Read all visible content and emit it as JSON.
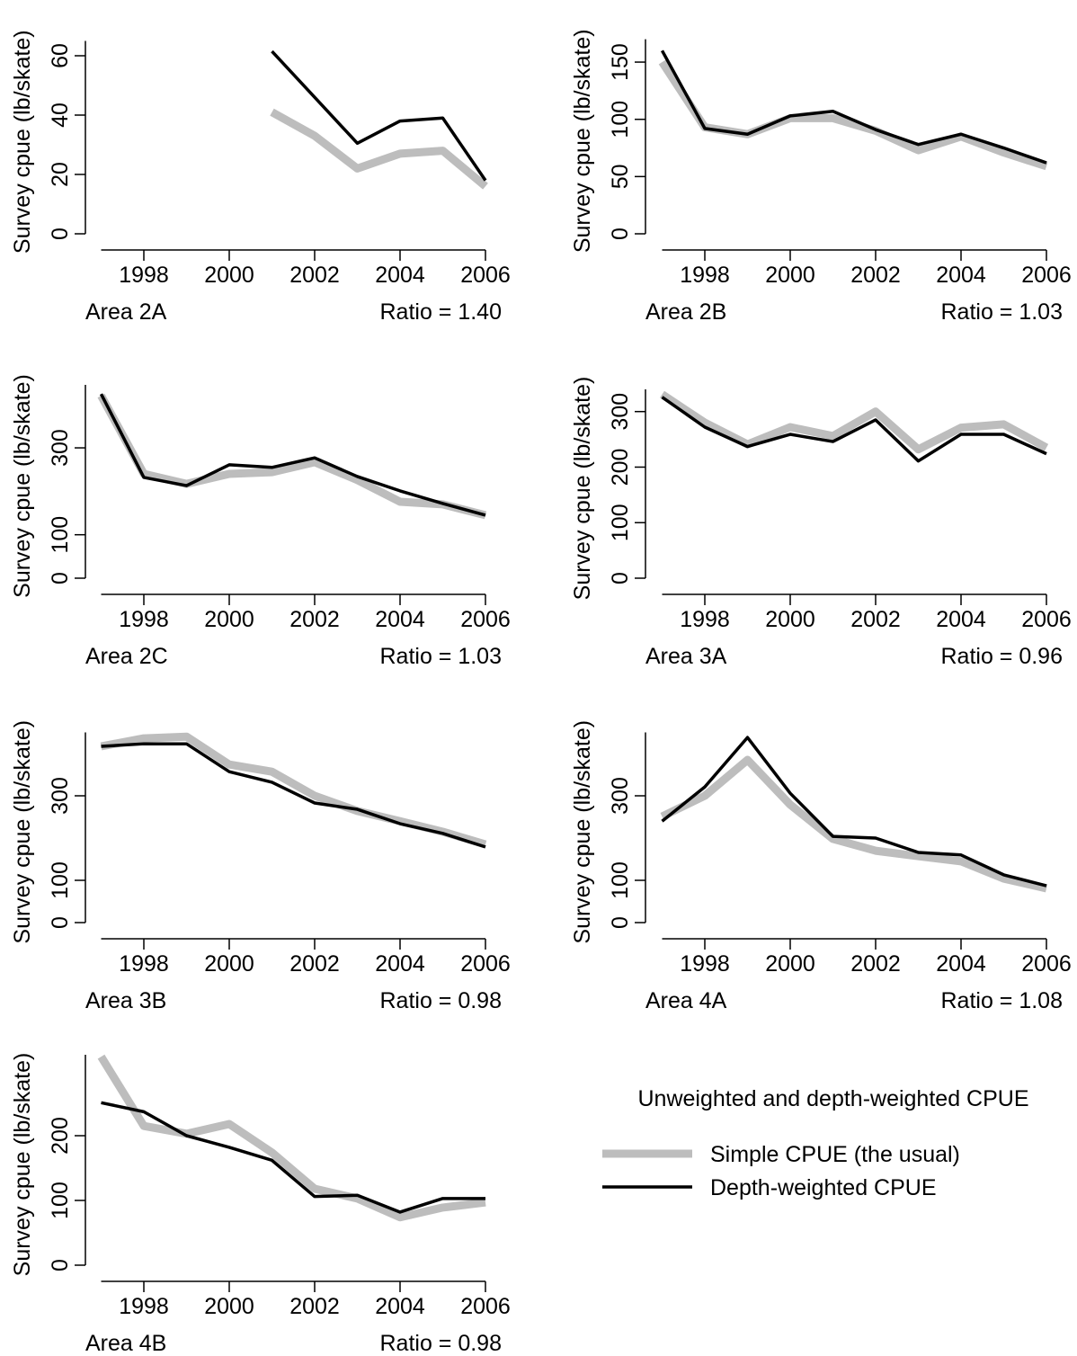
{
  "chart_data": [
    {
      "type": "line",
      "y_label": "Survey cpue (lb/skate)",
      "area": "Area 2A",
      "ratio": "Ratio = 1.40",
      "x": [
        1997,
        1998,
        1999,
        2000,
        2001,
        2002,
        2003,
        2004,
        2005,
        2006
      ],
      "xlim": [
        1997,
        2006
      ],
      "xticks": [
        1998,
        2000,
        2002,
        2004,
        2006
      ],
      "ylim": [
        0,
        65
      ],
      "yticks": [
        0,
        20,
        40,
        60
      ],
      "series": [
        {
          "name": "Simple CPUE (the usual)",
          "color": "#bdbdbd",
          "values": [
            null,
            null,
            null,
            null,
            41,
            33,
            22,
            27,
            28,
            16
          ]
        },
        {
          "name": "Depth-weighted CPUE",
          "color": "#000000",
          "values": [
            null,
            null,
            null,
            null,
            61.5,
            46,
            30.5,
            38,
            39,
            18
          ]
        }
      ]
    },
    {
      "type": "line",
      "y_label": "Survey cpue (lb/skate)",
      "area": "Area 2B",
      "ratio": "Ratio = 1.03",
      "x": [
        1997,
        1998,
        1999,
        2000,
        2001,
        2002,
        2003,
        2004,
        2005,
        2006
      ],
      "xlim": [
        1997,
        2006
      ],
      "xticks": [
        1998,
        2000,
        2002,
        2004,
        2006
      ],
      "ylim": [
        0,
        170
      ],
      "yticks": [
        0,
        50,
        100,
        150
      ],
      "series": [
        {
          "name": "Simple CPUE (the usual)",
          "color": "#bdbdbd",
          "values": [
            150,
            93,
            87,
            101,
            101,
            90,
            73,
            85,
            71,
            59
          ]
        },
        {
          "name": "Depth-weighted CPUE",
          "color": "#000000",
          "values": [
            160,
            92,
            87,
            103,
            107,
            91,
            78,
            87,
            75,
            62
          ]
        }
      ]
    },
    {
      "type": "line",
      "y_label": "Survey cpue (lb/skate)",
      "area": "Area 2C",
      "ratio": "Ratio = 1.03",
      "x": [
        1997,
        1998,
        1999,
        2000,
        2001,
        2002,
        2003,
        2004,
        2005,
        2006
      ],
      "xlim": [
        1997,
        2006
      ],
      "xticks": [
        1998,
        2000,
        2002,
        2004,
        2006
      ],
      "ylim": [
        0,
        445
      ],
      "yticks": [
        0,
        100,
        300
      ],
      "series": [
        {
          "name": "Simple CPUE (the usual)",
          "color": "#bdbdbd",
          "values": [
            420,
            240,
            217,
            240,
            244,
            267,
            226,
            176,
            170,
            145
          ]
        },
        {
          "name": "Depth-weighted CPUE",
          "color": "#000000",
          "values": [
            424,
            232,
            213,
            261,
            255,
            277,
            234,
            201,
            172,
            145
          ]
        }
      ]
    },
    {
      "type": "line",
      "y_label": "Survey cpue (lb/skate)",
      "area": "Area 3A",
      "ratio": "Ratio = 0.96",
      "x": [
        1997,
        1998,
        1999,
        2000,
        2001,
        2002,
        2003,
        2004,
        2005,
        2006
      ],
      "xlim": [
        1997,
        2006
      ],
      "xticks": [
        1998,
        2000,
        2002,
        2004,
        2006
      ],
      "ylim": [
        0,
        340
      ],
      "yticks": [
        0,
        100,
        200,
        300
      ],
      "series": [
        {
          "name": "Simple CPUE (the usual)",
          "color": "#bdbdbd",
          "values": [
            331,
            280,
            241,
            272,
            256,
            300,
            232,
            271,
            277,
            235
          ]
        },
        {
          "name": "Depth-weighted CPUE",
          "color": "#000000",
          "values": [
            326,
            272,
            237,
            259,
            246,
            285,
            211,
            259,
            259,
            224
          ]
        }
      ]
    },
    {
      "type": "line",
      "y_label": "Survey cpue (lb/skate)",
      "area": "Area 3B",
      "ratio": "Ratio = 0.98",
      "x": [
        1997,
        1998,
        1999,
        2000,
        2001,
        2002,
        2003,
        2004,
        2005,
        2006
      ],
      "xlim": [
        1997,
        2006
      ],
      "xticks": [
        1998,
        2000,
        2002,
        2004,
        2006
      ],
      "ylim": [
        0,
        450
      ],
      "yticks": [
        0,
        100,
        300
      ],
      "series": [
        {
          "name": "Simple CPUE (the usual)",
          "color": "#bdbdbd",
          "values": [
            417,
            436,
            440,
            374,
            357,
            300,
            264,
            240,
            215,
            185
          ]
        },
        {
          "name": "Depth-weighted CPUE",
          "color": "#000000",
          "values": [
            417,
            423,
            423,
            357,
            332,
            283,
            268,
            234,
            211,
            179
          ]
        }
      ]
    },
    {
      "type": "line",
      "y_label": "Survey cpue (lb/skate)",
      "area": "Area 4A",
      "ratio": "Ratio = 1.08",
      "x": [
        1997,
        1998,
        1999,
        2000,
        2001,
        2002,
        2003,
        2004,
        2005,
        2006
      ],
      "xlim": [
        1997,
        2006
      ],
      "xticks": [
        1998,
        2000,
        2002,
        2004,
        2006
      ],
      "ylim": [
        0,
        450
      ],
      "yticks": [
        0,
        100,
        300
      ],
      "series": [
        {
          "name": "Simple CPUE (the usual)",
          "color": "#bdbdbd",
          "values": [
            251,
            300,
            385,
            279,
            198,
            170,
            157,
            145,
            104,
            81
          ]
        },
        {
          "name": "Depth-weighted CPUE",
          "color": "#000000",
          "values": [
            240,
            321,
            438,
            306,
            204,
            200,
            166,
            160,
            113,
            87
          ]
        }
      ]
    },
    {
      "type": "line",
      "y_label": "Survey cpue (lb/skate)",
      "area": "Area 4B",
      "ratio": "Ratio = 0.98",
      "x": [
        1997,
        1998,
        1999,
        2000,
        2001,
        2002,
        2003,
        2004,
        2005,
        2006
      ],
      "xlim": [
        1997,
        2006
      ],
      "xticks": [
        1998,
        2000,
        2002,
        2004,
        2006
      ],
      "ylim": [
        0,
        325
      ],
      "yticks": [
        0,
        100,
        200
      ],
      "series": [
        {
          "name": "Simple CPUE (the usual)",
          "color": "#bdbdbd",
          "values": [
            322,
            215,
            203,
            218,
            174,
            118,
            103,
            74,
            89,
            97
          ]
        },
        {
          "name": "Depth-weighted CPUE",
          "color": "#000000",
          "values": [
            251,
            237,
            200,
            182,
            162,
            106,
            108,
            82,
            103,
            103
          ]
        }
      ]
    }
  ],
  "legend": {
    "title": "Unweighted and depth-weighted CPUE"
  }
}
